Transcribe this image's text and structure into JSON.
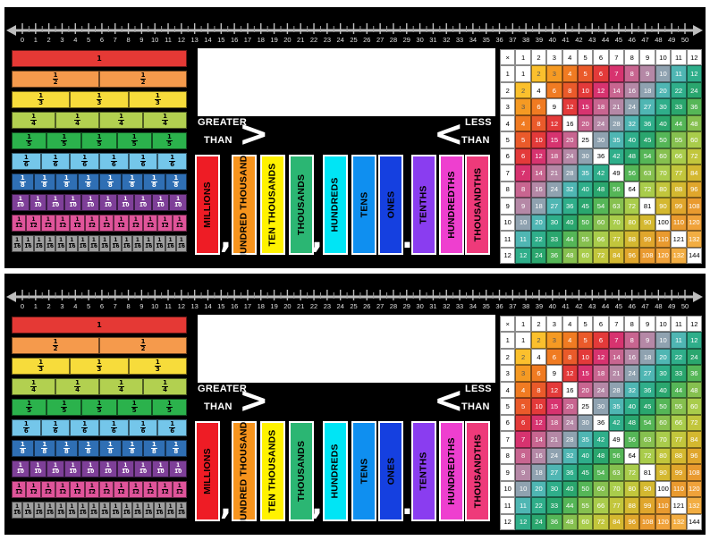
{
  "strips": [
    {
      "id": "top"
    },
    {
      "id": "bottom"
    }
  ],
  "number_line": {
    "labels": [
      "0",
      "1",
      "2",
      "3",
      "4",
      "5",
      "6",
      "7",
      "8",
      "9",
      "10",
      "11",
      "12",
      "13",
      "14",
      "15",
      "16",
      "17",
      "18",
      "19",
      "20",
      "21",
      "22",
      "23",
      "24",
      "25",
      "26",
      "27",
      "28",
      "29",
      "30",
      "31",
      "32",
      "33",
      "34",
      "35",
      "36",
      "37",
      "38",
      "39",
      "40",
      "41",
      "42",
      "43",
      "44",
      "45",
      "46",
      "47",
      "48",
      "49",
      "50"
    ]
  },
  "fraction_strips": [
    {
      "denominator": 1,
      "numerator_label": "1",
      "denominator_label": "",
      "color": "#e53935"
    },
    {
      "denominator": 2,
      "numerator_label": "1",
      "denominator_label": "2",
      "color": "#f59a4c"
    },
    {
      "denominator": 3,
      "numerator_label": "1",
      "denominator_label": "3",
      "color": "#f7dc3b"
    },
    {
      "denominator": 4,
      "numerator_label": "1",
      "denominator_label": "4",
      "color": "#b2d050"
    },
    {
      "denominator": 5,
      "numerator_label": "1",
      "denominator_label": "5",
      "color": "#2bb24c"
    },
    {
      "denominator": 6,
      "numerator_label": "1",
      "denominator_label": "6",
      "color": "#74c6ea"
    },
    {
      "denominator": 8,
      "numerator_label": "1",
      "denominator_label": "8",
      "color": "#2f6fb4"
    },
    {
      "denominator": 10,
      "numerator_label": "1",
      "denominator_label": "10",
      "color": "#7e3f98"
    },
    {
      "denominator": 12,
      "numerator_label": "1",
      "denominator_label": "12",
      "color": "#e0549a"
    },
    {
      "denominator": 16,
      "numerator_label": "1",
      "denominator_label": "16",
      "color": "#9e9e9e"
    }
  ],
  "comparison": {
    "greater_line1": "GREATER",
    "greater_line2": "THAN",
    "greater_symbol": ">",
    "less_line1": "LESS",
    "less_line2": "THAN",
    "less_symbol": "<"
  },
  "place_values": [
    {
      "label": "MILLIONS",
      "color": "#ee1c25",
      "text_color": "#000000"
    },
    {
      "label": "HUNDRED THOUSANDS",
      "color": "#f7941d",
      "text_color": "#000000"
    },
    {
      "label": "TEN THOUSANDS",
      "color": "#fff200",
      "text_color": "#000000"
    },
    {
      "label": "THOUSANDS",
      "color": "#2bb673",
      "text_color": "#000000"
    },
    {
      "label": "HUNDREDS",
      "color": "#00e5f5",
      "text_color": "#000000"
    },
    {
      "label": "TENS",
      "color": "#0f8ff0",
      "text_color": "#000000"
    },
    {
      "label": "ONES",
      "color": "#1540e0",
      "text_color": "#000000"
    },
    {
      "label": "TENTHS",
      "color": "#8a3df0",
      "text_color": "#000000"
    },
    {
      "label": "HUNDREDTHS",
      "color": "#ee3fcf",
      "text_color": "#000000"
    },
    {
      "label": "THOUSANDTHS",
      "color": "#ee3a7a",
      "text_color": "#000000"
    }
  ],
  "separators": {
    "comma": ",",
    "point": "."
  },
  "multiplication_table": {
    "corner": "×",
    "size": 12,
    "anti_diagonal_colors": [
      "#f7dc2e",
      "#fbc02d",
      "#f59a23",
      "#f07b22",
      "#ea5a2a",
      "#e33a3a",
      "#d7336f",
      "#c86590",
      "#b588a6",
      "#8fa2b0",
      "#4fb6b3",
      "#2fae8a",
      "#2aa66e",
      "#55b657",
      "#86c04f",
      "#a9cc4b",
      "#c2c63c",
      "#d4b830",
      "#e0a62c",
      "#e99a2f",
      "#f0a23a",
      "#f2ad42",
      "#f0b64c"
    ],
    "diagonal_color": "#ffffff",
    "header_color": "#ffffff",
    "header_text_color": "#000000"
  }
}
